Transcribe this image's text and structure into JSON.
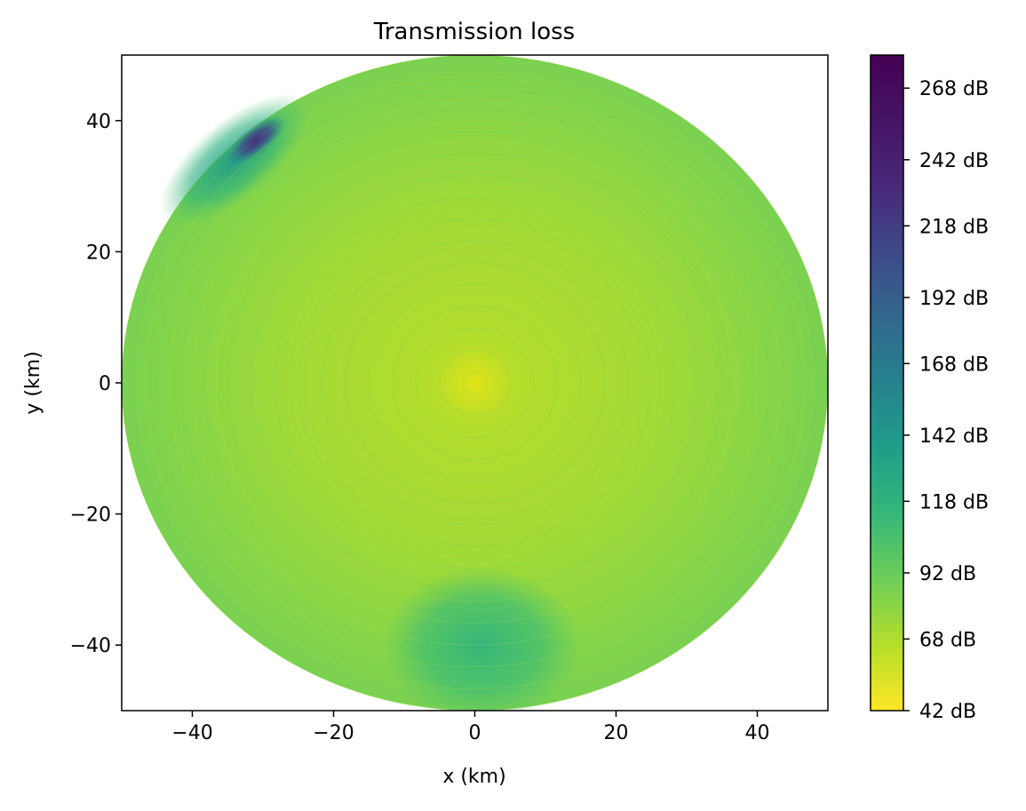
{
  "chart_data": {
    "type": "heatmap",
    "title": "Transmission loss",
    "xlabel": "x (km)",
    "ylabel": "y (km)",
    "xlim": [
      -50,
      50
    ],
    "ylim": [
      -50,
      50
    ],
    "x_ticks": [
      -40,
      -20,
      0,
      20,
      40
    ],
    "y_ticks": [
      -40,
      -20,
      0,
      20,
      40
    ],
    "x_tick_labels": [
      "−40",
      "−20",
      "0",
      "20",
      "40"
    ],
    "y_tick_labels": [
      "−40",
      "−20",
      "0",
      "20",
      "40"
    ],
    "grid": false,
    "field_radius_km": 50,
    "colormap": "viridis_r",
    "colorbar": {
      "min": 42,
      "max": 280,
      "ticks": [
        42,
        68,
        92,
        118,
        142,
        168,
        192,
        218,
        242,
        268
      ],
      "tick_labels": [
        "42 dB",
        "68 dB",
        "92 dB",
        "118 dB",
        "142 dB",
        "168 dB",
        "192 dB",
        "218 dB",
        "242 dB",
        "268 dB"
      ]
    },
    "colors": {
      "yellow": "#fde725",
      "light_green": "#a5db36",
      "green": "#4ac16d",
      "teal": "#1fa187",
      "blue": "#365c8d",
      "purple": "#440154"
    },
    "regions": [
      {
        "label": "center",
        "x": 0,
        "y": 0,
        "value": 60
      },
      {
        "label": "bulk field",
        "value": 95
      },
      {
        "label": "southern high-loss wedge",
        "x": 0,
        "y": -40,
        "value": 135
      },
      {
        "label": "north-west edge",
        "x": -34,
        "y": 34,
        "value": 140
      },
      {
        "label": "north-west peak",
        "x": -31,
        "y": 37,
        "value": 250
      }
    ]
  }
}
